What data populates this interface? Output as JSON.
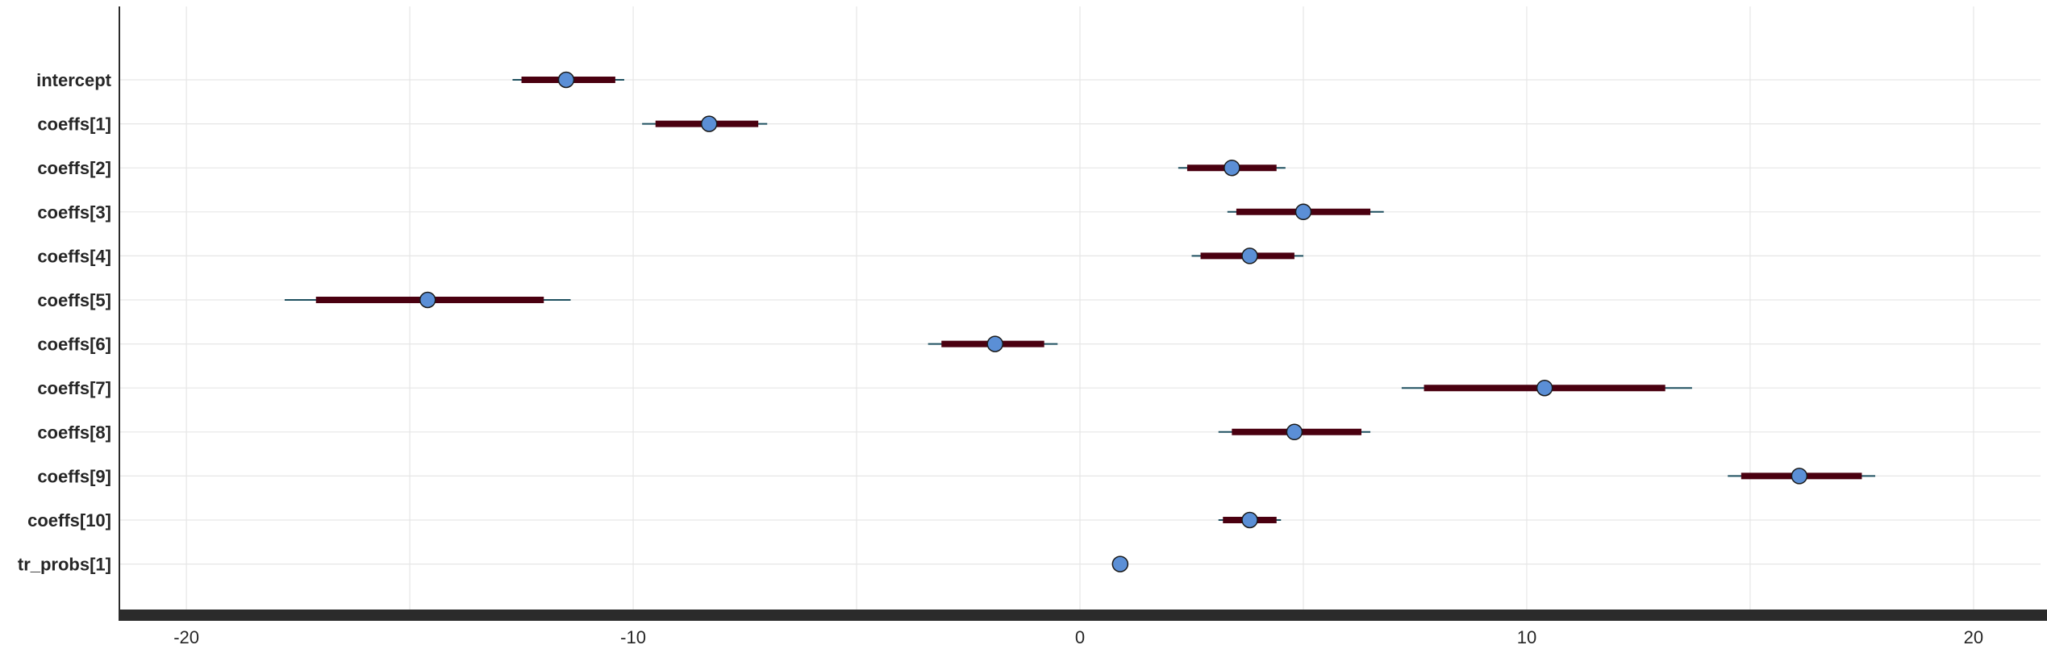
{
  "chart_data": {
    "type": "forest",
    "title": "",
    "xlabel": "",
    "ylabel": "",
    "xlim": [
      -21.5,
      21.5
    ],
    "xticks": [
      -20,
      -10,
      0,
      10,
      20
    ],
    "xtick_labels": [
      "-20",
      "-10",
      "0",
      "10",
      "20"
    ],
    "grid": true,
    "colors": {
      "point_fill": "#5b8fd6",
      "point_edge": "#1a1a1a",
      "thick_interval": "#4a0010",
      "thin_interval": "#1d4f5f",
      "grid": "#e6e6e6",
      "axis": "#2b2b2b"
    },
    "categories": [
      "intercept",
      "coeffs[1]",
      "coeffs[2]",
      "coeffs[3]",
      "coeffs[4]",
      "coeffs[5]",
      "coeffs[6]",
      "coeffs[7]",
      "coeffs[8]",
      "coeffs[9]",
      "coeffs[10]",
      "tr_probs[1]"
    ],
    "estimates": [
      {
        "label": "intercept",
        "mean": -11.5,
        "inner": [
          -12.5,
          -10.4
        ],
        "outer": [
          -12.7,
          -10.2
        ]
      },
      {
        "label": "coeffs[1]",
        "mean": -8.3,
        "inner": [
          -9.5,
          -7.2
        ],
        "outer": [
          -9.8,
          -7.0
        ]
      },
      {
        "label": "coeffs[2]",
        "mean": 3.4,
        "inner": [
          2.4,
          4.4
        ],
        "outer": [
          2.2,
          4.6
        ]
      },
      {
        "label": "coeffs[3]",
        "mean": 5.0,
        "inner": [
          3.5,
          6.5
        ],
        "outer": [
          3.3,
          6.8
        ]
      },
      {
        "label": "coeffs[4]",
        "mean": 3.8,
        "inner": [
          2.7,
          4.8
        ],
        "outer": [
          2.5,
          5.0
        ]
      },
      {
        "label": "coeffs[5]",
        "mean": -14.6,
        "inner": [
          -17.1,
          -12.0
        ],
        "outer": [
          -17.8,
          -11.4
        ]
      },
      {
        "label": "coeffs[6]",
        "mean": -1.9,
        "inner": [
          -3.1,
          -0.8
        ],
        "outer": [
          -3.4,
          -0.5
        ]
      },
      {
        "label": "coeffs[7]",
        "mean": 10.4,
        "inner": [
          7.7,
          13.1
        ],
        "outer": [
          7.2,
          13.7
        ]
      },
      {
        "label": "coeffs[8]",
        "mean": 4.8,
        "inner": [
          3.4,
          6.3
        ],
        "outer": [
          3.1,
          6.5
        ]
      },
      {
        "label": "coeffs[9]",
        "mean": 16.1,
        "inner": [
          14.8,
          17.5
        ],
        "outer": [
          14.5,
          17.8
        ]
      },
      {
        "label": "coeffs[10]",
        "mean": 3.8,
        "inner": [
          3.2,
          4.4
        ],
        "outer": [
          3.1,
          4.5
        ]
      },
      {
        "label": "tr_probs[1]",
        "mean": 0.9,
        "inner": [
          0.88,
          0.92
        ],
        "outer": [
          0.87,
          0.93
        ]
      }
    ]
  }
}
